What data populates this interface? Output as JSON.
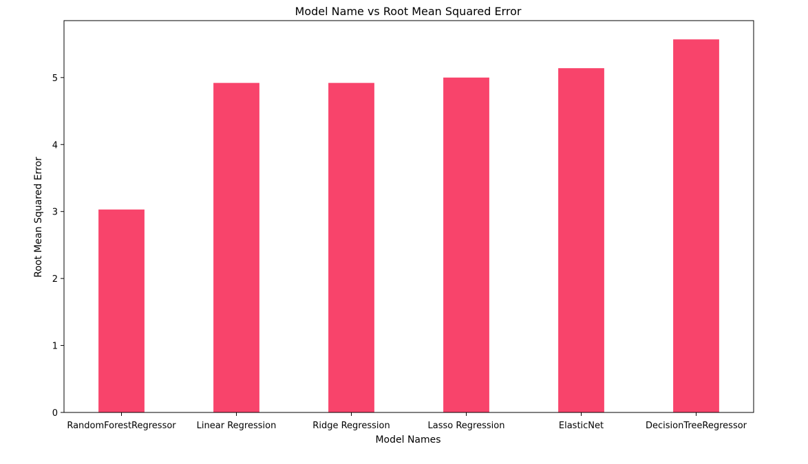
{
  "chart_data": {
    "type": "bar",
    "title": "Model Name vs Root Mean Squared Error",
    "xlabel": "Model Names",
    "ylabel": "Root Mean Squared Error",
    "categories": [
      "RandomForestRegressor",
      "Linear Regression",
      "Ridge Regression",
      "Lasso Regression",
      "ElasticNet",
      "DecisionTreeRegressor"
    ],
    "values": [
      3.03,
      4.92,
      4.92,
      5.0,
      5.14,
      5.57
    ],
    "ylim": [
      0,
      5.85
    ],
    "yticks": [
      0,
      1,
      2,
      3,
      4,
      5
    ],
    "bar_color": "#f8446b",
    "grid": false,
    "legend": "none"
  }
}
